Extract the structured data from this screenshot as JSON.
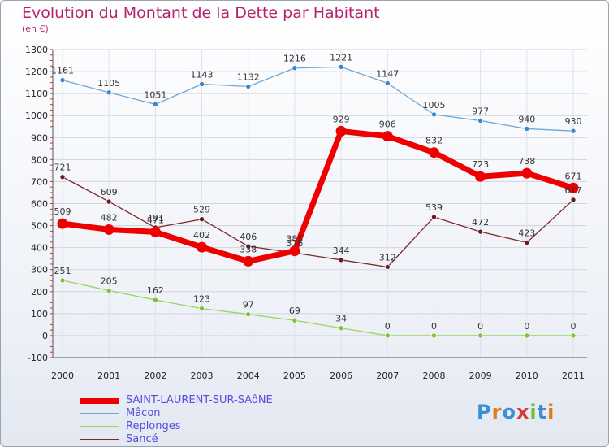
{
  "header": {
    "title": "Evolution du Montant de la Dette par Habitant",
    "subtitle": "(en €)"
  },
  "colors": {
    "title": "#b5236f",
    "legend_text": "#5a4be0"
  },
  "logo": {
    "text": "Proxiti",
    "letters": [
      "P",
      "r",
      "o",
      "x",
      "i",
      "t",
      "i"
    ],
    "letter_colors": [
      "#3a8fd6",
      "#e07a1e",
      "#3a8fd6",
      "#d63a3a",
      "#6fbf3a",
      "#3a8fd6",
      "#e07a1e"
    ]
  },
  "chart_data": {
    "type": "line",
    "x": [
      "2000",
      "2001",
      "2002",
      "2003",
      "2004",
      "2005",
      "2006",
      "2007",
      "2008",
      "2009",
      "2010",
      "2011"
    ],
    "ylim": [
      -100,
      1300
    ],
    "yticks": [
      -100,
      0,
      100,
      200,
      300,
      400,
      500,
      600,
      700,
      800,
      900,
      1000,
      1100,
      1200,
      1300
    ],
    "grid": true,
    "legend_position": "bottom-left",
    "series": [
      {
        "name": "SAINT-LAURENT-SUR-SAôNE",
        "color": "#ee0000",
        "marker": "#ee0000",
        "width": 7,
        "values": [
          509,
          482,
          471,
          402,
          338,
          385,
          929,
          906,
          832,
          723,
          738,
          671
        ]
      },
      {
        "name": "Mâcon",
        "color": "#6fa8d6",
        "marker": "#3f86c8",
        "width": 1.3,
        "values": [
          1161,
          1105,
          1051,
          1143,
          1132,
          1216,
          1221,
          1147,
          1005,
          977,
          940,
          930
        ]
      },
      {
        "name": "Replonges",
        "color": "#9bd65a",
        "marker": "#7fc23a",
        "width": 1.3,
        "values": [
          251,
          205,
          162,
          123,
          97,
          69,
          34,
          0,
          0,
          0,
          0,
          0
        ]
      },
      {
        "name": "Sancé",
        "color": "#7a2a2a",
        "marker": "#6a1a1a",
        "width": 1.3,
        "values": [
          721,
          609,
          491,
          529,
          406,
          376,
          344,
          312,
          539,
          472,
          423,
          617
        ]
      }
    ]
  }
}
